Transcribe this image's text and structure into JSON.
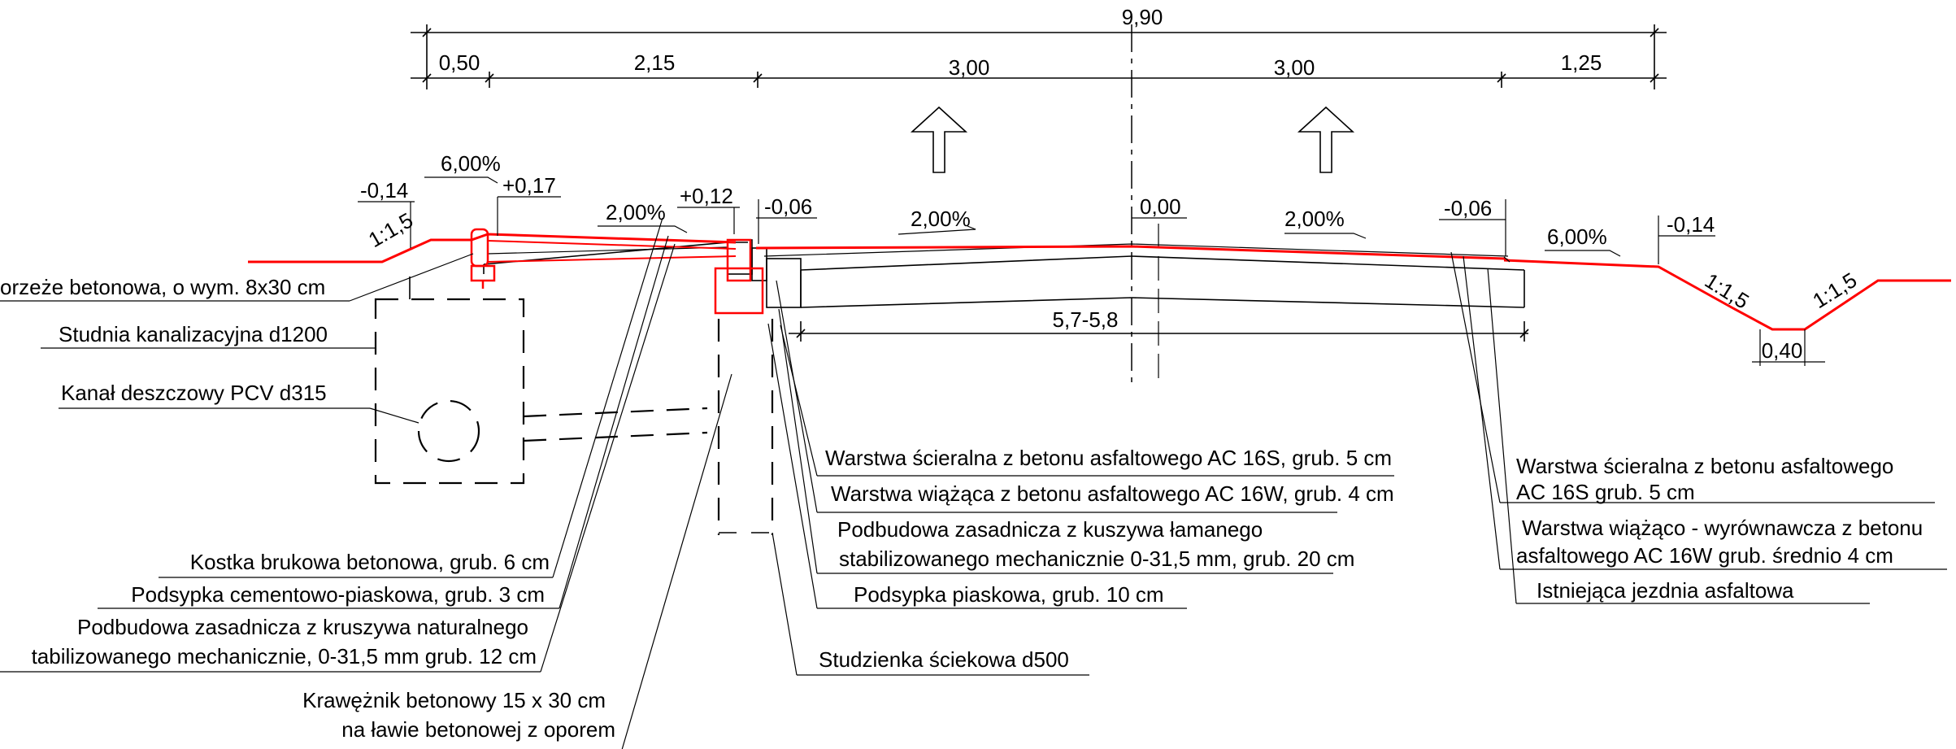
{
  "dimensions": {
    "total": "9,90",
    "segments": [
      "0,50",
      "2,15",
      "3,00",
      "3,00",
      "1,25"
    ],
    "inner_width": "5,7-5,8",
    "ditch_bottom": "0,40"
  },
  "elevations": {
    "left_edge": "-0,14",
    "sidewalk_top": "+0,17",
    "curb_top": "+0,12",
    "left_lane_edge": "-0,06",
    "axis": "0,00",
    "right_lane_edge": "-0,06",
    "right_edge": "-0,14"
  },
  "slopes": {
    "left_shoulder": "6,00%",
    "sidewalk": "2,00%",
    "left_lane": "2,00%",
    "right_lane": "2,00%",
    "right_shoulder": "6,00%",
    "left_embankment": "1:1,5",
    "ditch_left": "1:1,5",
    "ditch_right": "1:1,5"
  },
  "labels_left": [
    "orzeże betonowa,  o wym. 8x30 cm",
    "Studnia kanalizacyjna d1200",
    "Kanał deszczowy PCV d315"
  ],
  "labels_bottom_left": [
    "Kostka brukowa betonowa, grub. 6 cm",
    "Podsypka cementowo-piaskowa, grub. 3 cm",
    "Podbudowa zasadnicza z kruszywa naturalnego",
    "tabilizowanego mechanicznie, 0-31,5 mm grub. 12 cm",
    "Krawężnik betonowy 15 x 30 cm",
    "na ławie betonowej z oporem"
  ],
  "labels_middle": [
    "Warstwa ścieralna z betonu asfaltowego AC 16S, grub. 5 cm",
    "Warstwa wiążąca z betonu asfaltowego AC 16W, grub. 4 cm",
    "Podbudowa zasadnicza z kuszywa łamanego",
    "stabilizowanego mechanicznie 0-31,5 mm, grub. 20 cm",
    "Podsypka piaskowa, grub. 10 cm",
    "Studzienka ściekowa d500"
  ],
  "labels_right": [
    "Warstwa ścieralna z betonu asfaltowego",
    "AC 16S  grub. 5 cm",
    "Warstwa wiążąco - wyrównawcza z betonu",
    "asfaltowego AC 16W grub. średnio 4 cm",
    "Istniejąca jezdnia asfaltowa"
  ],
  "colors": {
    "new_surface": "#ff0000",
    "existing": "#000000"
  }
}
